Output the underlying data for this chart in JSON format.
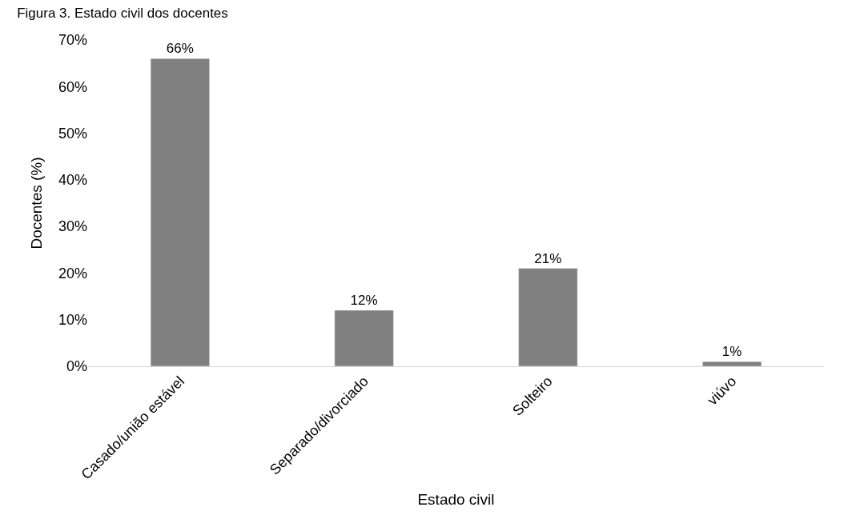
{
  "chart_data": {
    "type": "bar",
    "title": "Figura 3. Estado civil dos docentes",
    "xlabel": "Estado civil",
    "ylabel": "Docentes (%)",
    "categories": [
      "Casado/união estável",
      "Separado/divorciado",
      "Solteiro",
      "viúvo"
    ],
    "values": [
      66,
      12,
      21,
      1
    ],
    "color": "#808080",
    "ylim": [
      0,
      70
    ],
    "yticks": [
      {
        "value": 0,
        "label": "0%"
      },
      {
        "value": 10,
        "label": "10%"
      },
      {
        "value": 20,
        "label": "20%"
      },
      {
        "value": 30,
        "label": "30%"
      },
      {
        "value": 40,
        "label": "40%"
      },
      {
        "value": 50,
        "label": "50%"
      },
      {
        "value": 60,
        "label": "60%"
      },
      {
        "value": 70,
        "label": "70%"
      }
    ],
    "value_labels": [
      "66%",
      "12%",
      "21%",
      "1%"
    ]
  }
}
